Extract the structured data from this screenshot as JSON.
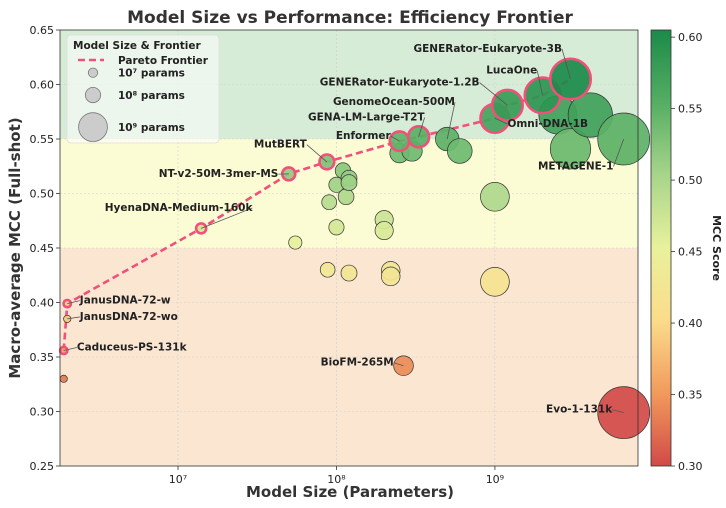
{
  "chart_data": {
    "type": "scatter",
    "title": "Model Size vs Performance: Efficiency Frontier",
    "xlabel": "Model Size (Parameters)",
    "ylabel": "Macro-average MCC (Full-shot)",
    "xscale": "log",
    "xlim": [
      1800000.0,
      8000000000.0
    ],
    "ylim": [
      0.25,
      0.65
    ],
    "x_ticks": [
      {
        "value": 10000000.0,
        "label": "10⁷"
      },
      {
        "value": 100000000.0,
        "label": "10⁸"
      },
      {
        "value": 1000000000.0,
        "label": "10⁹"
      }
    ],
    "y_ticks": [
      0.25,
      0.3,
      0.35,
      0.4,
      0.45,
      0.5,
      0.55,
      0.6,
      0.65
    ],
    "grid": true,
    "background_bands": [
      {
        "from": 0.25,
        "to": 0.45,
        "color": "#fbe6d2"
      },
      {
        "from": 0.45,
        "to": 0.55,
        "color": "#fbfbd4"
      },
      {
        "from": 0.55,
        "to": 0.65,
        "color": "#d7ecd7"
      }
    ],
    "legend": {
      "title": "Model Size & Frontier",
      "placement": "top-left",
      "entries": [
        {
          "label": "Pareto Frontier",
          "kind": "line",
          "color": "#f0507a"
        },
        {
          "label": "10⁷ params",
          "kind": "size",
          "params": 10000000.0
        },
        {
          "label": "10⁸ params",
          "kind": "size",
          "params": 100000000.0
        },
        {
          "label": "10⁹ params",
          "kind": "size",
          "params": 1000000000.0
        }
      ]
    },
    "colorbar": {
      "label": "MCC Score",
      "min": 0.3,
      "max": 0.605,
      "ticks": [
        0.3,
        0.35,
        0.4,
        0.45,
        0.5,
        0.55,
        0.6
      ],
      "colors": [
        "#d14a47",
        "#f29a5b",
        "#fbdc8a",
        "#e9f19c",
        "#a7d58b",
        "#55ae63",
        "#1b8a4a"
      ]
    },
    "frontier_color": "#f0507a",
    "pareto_frontier": [
      {
        "x": 1900000.0,
        "y": 0.356
      },
      {
        "x": 2000000.0,
        "y": 0.399
      },
      {
        "x": 14000000.0,
        "y": 0.468
      },
      {
        "x": 50000000.0,
        "y": 0.518
      },
      {
        "x": 87000000.0,
        "y": 0.529
      },
      {
        "x": 250000000.0,
        "y": 0.548
      },
      {
        "x": 330000000.0,
        "y": 0.552
      },
      {
        "x": 1000000000.0,
        "y": 0.569
      },
      {
        "x": 1200000000.0,
        "y": 0.581
      },
      {
        "x": 2000000000.0,
        "y": 0.59
      },
      {
        "x": 3000000000.0,
        "y": 0.605
      }
    ],
    "points": [
      {
        "x": 1900000.0,
        "y": 0.33
      },
      {
        "x": 1900000.0,
        "y": 0.356,
        "frontier": true
      },
      {
        "x": 2000000.0,
        "y": 0.385
      },
      {
        "x": 2000000.0,
        "y": 0.399,
        "frontier": true
      },
      {
        "x": 14000000.0,
        "y": 0.468,
        "frontier": true
      },
      {
        "x": 50000000.0,
        "y": 0.518,
        "frontier": true
      },
      {
        "x": 55000000.0,
        "y": 0.455
      },
      {
        "x": 87000000.0,
        "y": 0.529,
        "frontier": true
      },
      {
        "x": 88000000.0,
        "y": 0.43
      },
      {
        "x": 90000000.0,
        "y": 0.492
      },
      {
        "x": 100000000.0,
        "y": 0.508
      },
      {
        "x": 100000000.0,
        "y": 0.469
      },
      {
        "x": 110000000.0,
        "y": 0.521
      },
      {
        "x": 115000000.0,
        "y": 0.497
      },
      {
        "x": 120000000.0,
        "y": 0.514
      },
      {
        "x": 120000000.0,
        "y": 0.51
      },
      {
        "x": 120000000.0,
        "y": 0.427
      },
      {
        "x": 200000000.0,
        "y": 0.476
      },
      {
        "x": 200000000.0,
        "y": 0.466
      },
      {
        "x": 220000000.0,
        "y": 0.429
      },
      {
        "x": 220000000.0,
        "y": 0.424
      },
      {
        "x": 250000000.0,
        "y": 0.548,
        "frontier": true
      },
      {
        "x": 250000000.0,
        "y": 0.537
      },
      {
        "x": 265000000.0,
        "y": 0.342
      },
      {
        "x": 300000000.0,
        "y": 0.539
      },
      {
        "x": 330000000.0,
        "y": 0.552,
        "frontier": true
      },
      {
        "x": 500000000.0,
        "y": 0.55
      },
      {
        "x": 600000000.0,
        "y": 0.539
      },
      {
        "x": 1000000000.0,
        "y": 0.569,
        "frontier": true
      },
      {
        "x": 1000000000.0,
        "y": 0.497
      },
      {
        "x": 1000000000.0,
        "y": 0.419
      },
      {
        "x": 1200000000.0,
        "y": 0.581,
        "frontier": true
      },
      {
        "x": 2000000000.0,
        "y": 0.59,
        "frontier": true
      },
      {
        "x": 2500000000.0,
        "y": 0.572
      },
      {
        "x": 3000000000.0,
        "y": 0.605,
        "frontier": true
      },
      {
        "x": 3000000000.0,
        "y": 0.541
      },
      {
        "x": 4000000000.0,
        "y": 0.572
      },
      {
        "x": 6500000000.0,
        "y": 0.55
      },
      {
        "x": 6500000000.0,
        "y": 0.299
      }
    ],
    "annotations": [
      {
        "text": "GENERator-Eukaryote-3B",
        "x": 3000000000.0,
        "y": 0.605,
        "anchor": "end",
        "ty": 0.63,
        "tx": 2650000000.0
      },
      {
        "text": "LucaOne",
        "x": 2000000000.0,
        "y": 0.59,
        "anchor": "end",
        "ty": 0.61,
        "tx": 1850000000.0
      },
      {
        "text": "GENERator-Eukaryote-1.2B",
        "x": 1200000000.0,
        "y": 0.581,
        "anchor": "end",
        "ty": 0.599,
        "tx": 800000000.0
      },
      {
        "text": "GenomeOcean-500M",
        "x": 500000000.0,
        "y": 0.55,
        "anchor": "end",
        "ty": 0.581,
        "tx": 560000000.0
      },
      {
        "text": "GENA-LM-Large-T2T",
        "x": 330000000.0,
        "y": 0.552,
        "anchor": "end",
        "ty": 0.567,
        "tx": 360000000.0
      },
      {
        "text": "Enformer",
        "x": 250000000.0,
        "y": 0.548,
        "anchor": "end",
        "ty": 0.55,
        "tx": 220000000.0
      },
      {
        "text": "MutBERT",
        "x": 87000000.0,
        "y": 0.529,
        "anchor": "end",
        "ty": 0.542,
        "tx": 65000000.0
      },
      {
        "text": "NT-v2-50M-3mer-MS",
        "x": 50000000.0,
        "y": 0.518,
        "anchor": "end",
        "ty": 0.515,
        "tx": 43000000.0
      },
      {
        "text": "HyenaDNA-Medium-160k",
        "x": 14000000.0,
        "y": 0.468,
        "anchor": "end",
        "ty": 0.484,
        "tx": 29500000.0
      },
      {
        "text": "Omni-DNA-1B",
        "x": 1000000000.0,
        "y": 0.569,
        "anchor": "start",
        "ty": 0.561,
        "tx": 1200000000.0
      },
      {
        "text": "METAGENE-1",
        "x": 6500000000.0,
        "y": 0.55,
        "anchor": "end",
        "ty": 0.522,
        "tx": 5600000000.0
      },
      {
        "text": "JanusDNA-72-w",
        "x": 2000000.0,
        "y": 0.399,
        "anchor": "start",
        "ty": 0.399,
        "tx": 2400000.0
      },
      {
        "text": "JanusDNA-72-wo",
        "x": 2000000.0,
        "y": 0.385,
        "anchor": "start",
        "ty": 0.384,
        "tx": 2400000.0
      },
      {
        "text": "Caduceus-PS-131k",
        "x": 1900000.0,
        "y": 0.356,
        "anchor": "start",
        "ty": 0.356,
        "tx": 2300000.0
      },
      {
        "text": "BioFM-265M",
        "x": 265000000.0,
        "y": 0.342,
        "anchor": "end",
        "ty": 0.342,
        "tx": 230000000.0
      },
      {
        "text": "Evo-1-131k",
        "x": 6500000000.0,
        "y": 0.299,
        "anchor": "end",
        "ty": 0.299,
        "tx": 5500000000.0
      }
    ]
  }
}
